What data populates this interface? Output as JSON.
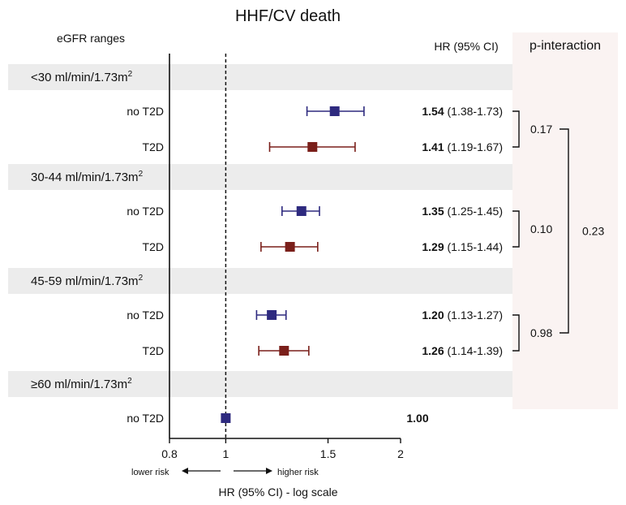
{
  "chart_data": {
    "type": "forest",
    "title": "HHF/CV death",
    "row_header": "eGFR ranges",
    "hr_column_header": "HR (95% CI)",
    "interaction_header": "p-interaction",
    "xlabel": "HR (95% CI) - log scale",
    "x_scale": "log",
    "xlim": [
      0.8,
      2
    ],
    "x_ticks": [
      0.8,
      1,
      1.5,
      2
    ],
    "x_tick_labels": [
      "0.8",
      "1",
      "1.5",
      "2"
    ],
    "reference_line": 1,
    "direction_labels": {
      "left": "lower risk",
      "right": "higher risk"
    },
    "colors": {
      "no_t2d": "#2e2a7f",
      "t2d": "#7a1f1a",
      "band": "#ececec",
      "interaction_panel": "#faf3f2"
    },
    "groups": [
      {
        "label": "<30 ml/min/1.73m²",
        "rows": [
          {
            "label": "no T2D",
            "hr": 1.54,
            "lower": 1.38,
            "upper": 1.73,
            "hr_text": "1.54",
            "ci_text": "(1.38-1.73)",
            "series": "no_t2d"
          },
          {
            "label": "T2D",
            "hr": 1.41,
            "lower": 1.19,
            "upper": 1.67,
            "hr_text": "1.41",
            "ci_text": "(1.19-1.67)",
            "series": "t2d"
          }
        ],
        "p_interaction": "0.17"
      },
      {
        "label": "30-44 ml/min/1.73m²",
        "rows": [
          {
            "label": "no T2D",
            "hr": 1.35,
            "lower": 1.25,
            "upper": 1.45,
            "hr_text": "1.35",
            "ci_text": "(1.25-1.45)",
            "series": "no_t2d"
          },
          {
            "label": "T2D",
            "hr": 1.29,
            "lower": 1.15,
            "upper": 1.44,
            "hr_text": "1.29",
            "ci_text": "(1.15-1.44)",
            "series": "t2d"
          }
        ],
        "p_interaction": "0.10"
      },
      {
        "label": "45-59 ml/min/1.73m²",
        "rows": [
          {
            "label": "no T2D",
            "hr": 1.2,
            "lower": 1.13,
            "upper": 1.27,
            "hr_text": "1.20",
            "ci_text": "(1.13-1.27)",
            "series": "no_t2d"
          },
          {
            "label": "T2D",
            "hr": 1.26,
            "lower": 1.14,
            "upper": 1.39,
            "hr_text": "1.26",
            "ci_text": "(1.14-1.39)",
            "series": "t2d"
          }
        ],
        "p_interaction": "0.98"
      },
      {
        "label": "≥60 ml/min/1.73m²",
        "rows": [
          {
            "label": "no T2D",
            "hr": 1.0,
            "hr_text": "1.00",
            "ci_text": "",
            "series": "no_t2d"
          }
        ],
        "p_interaction": ""
      }
    ],
    "overall_p_interaction": "0.23"
  }
}
